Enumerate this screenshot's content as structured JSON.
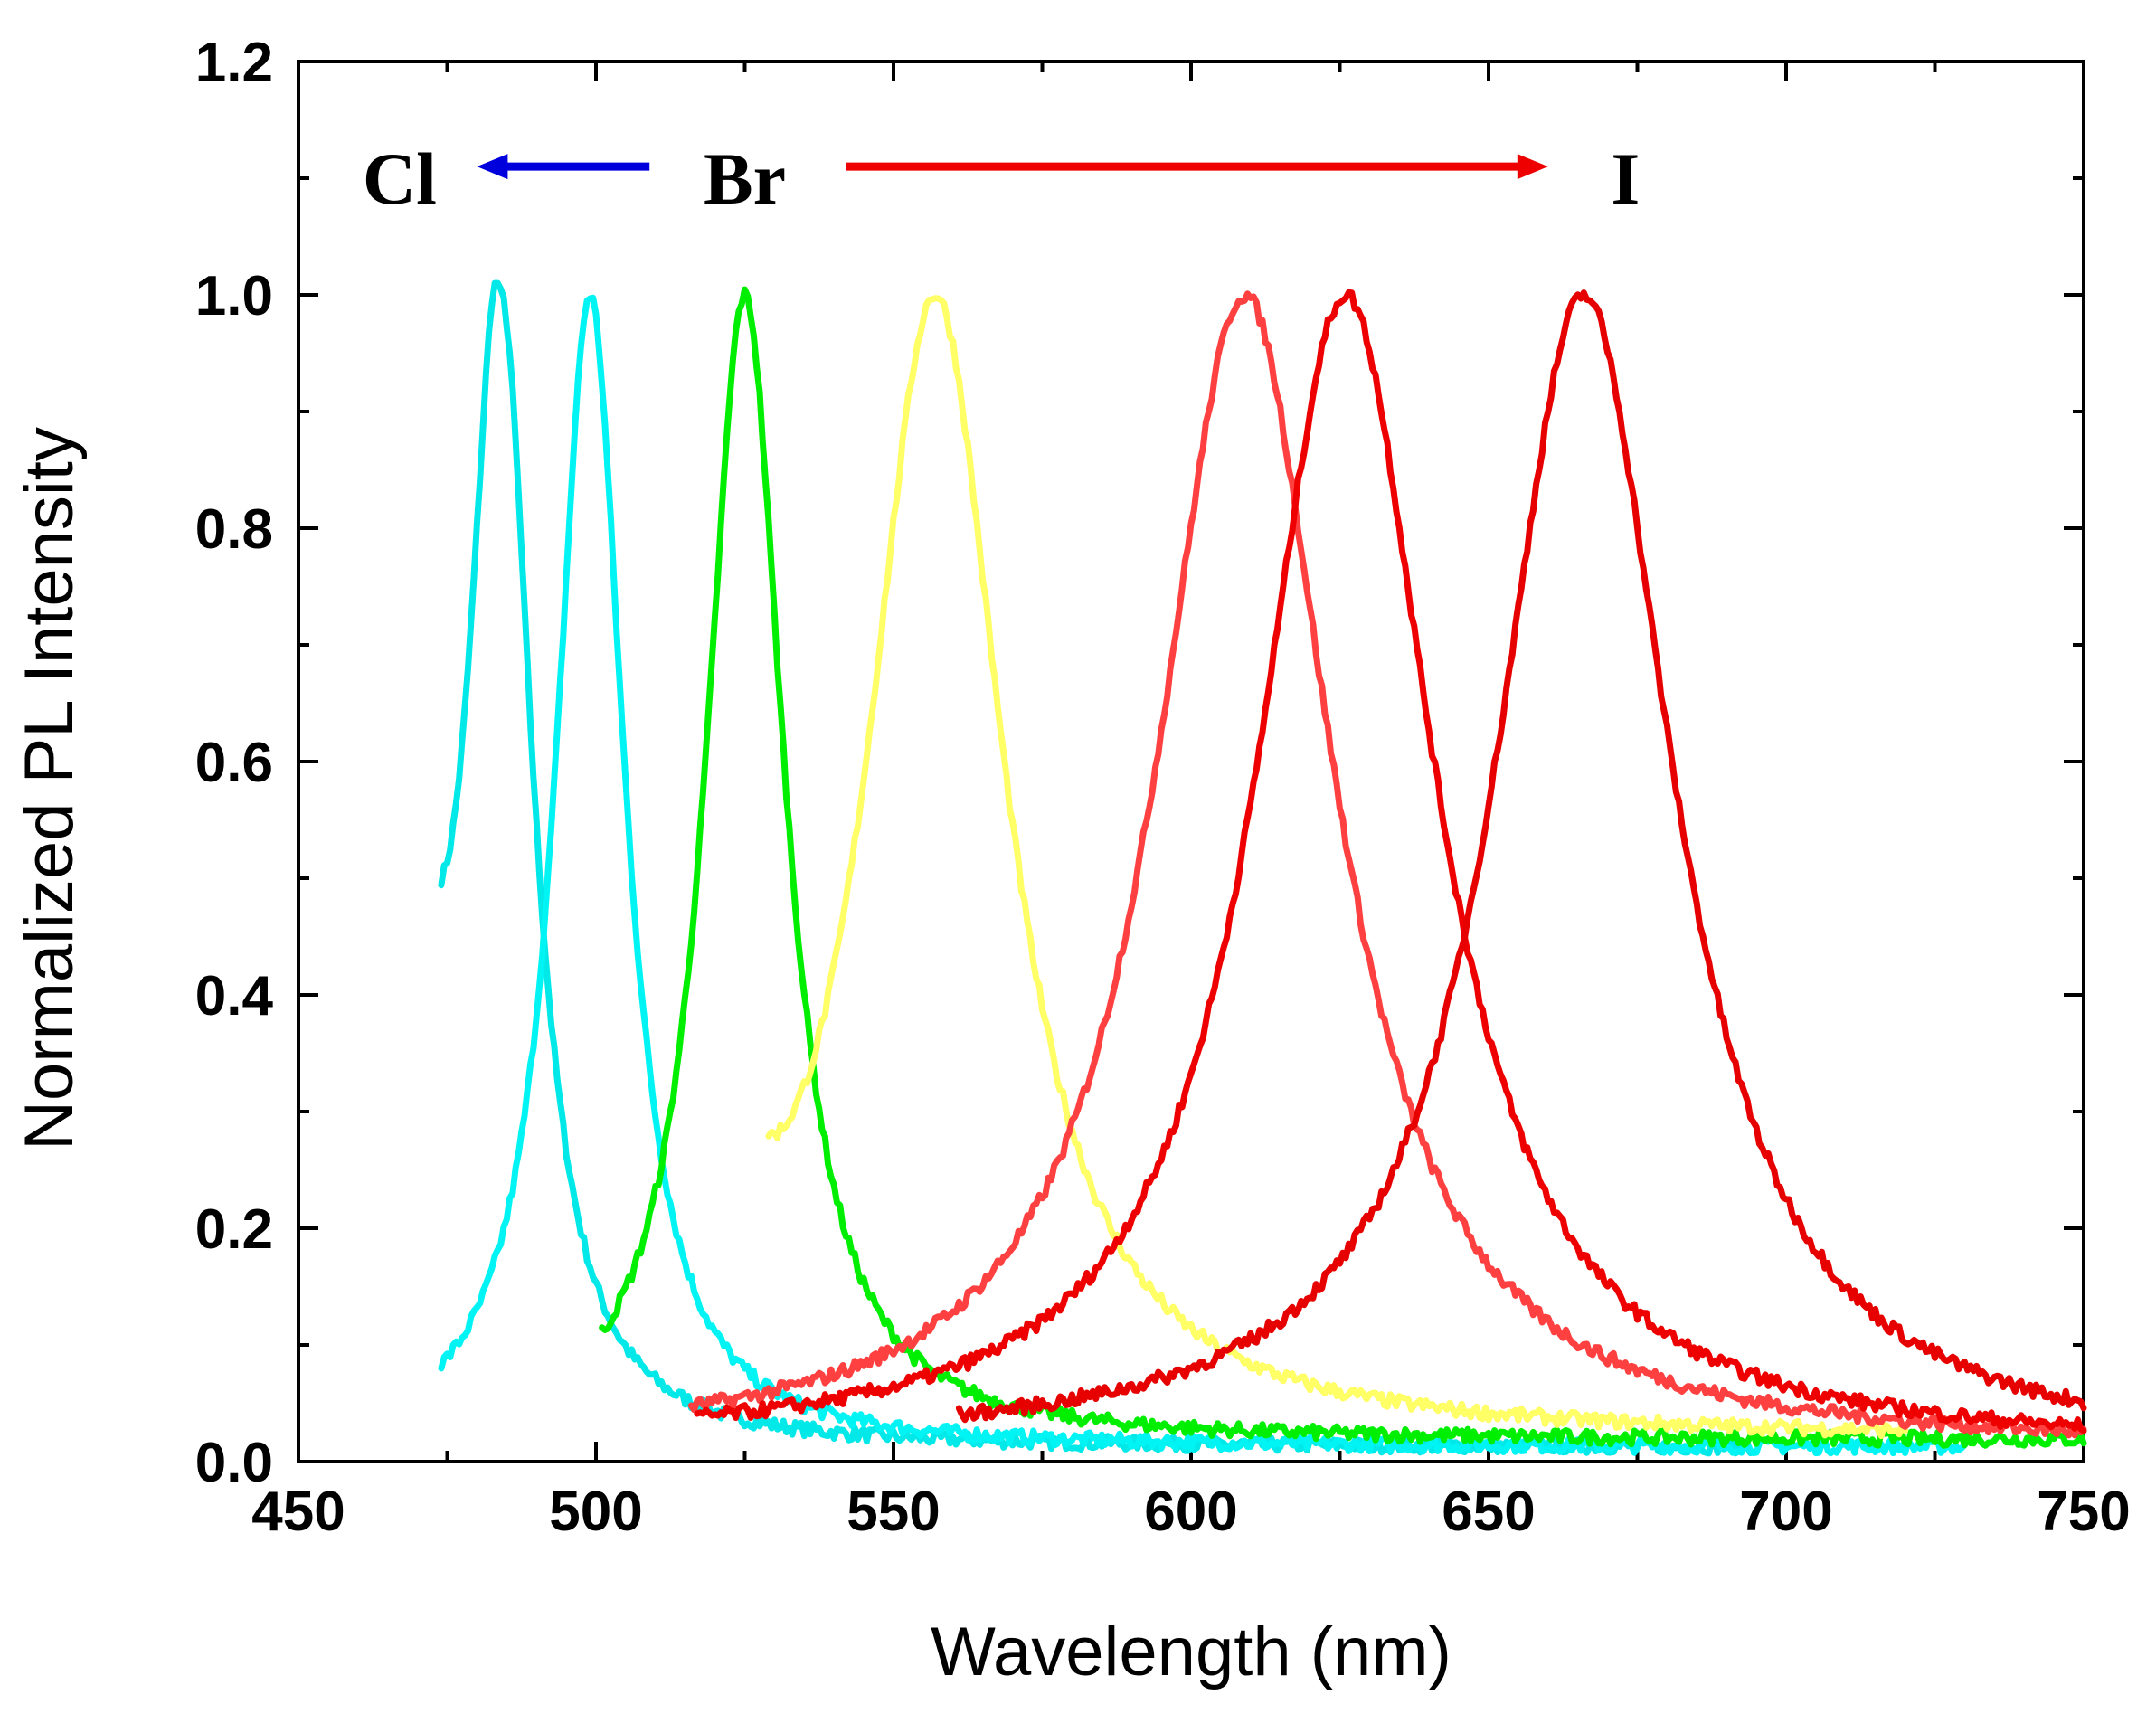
{
  "chart_data": {
    "type": "line",
    "title": "",
    "xlabel": "Wavelength (nm)",
    "ylabel": "Normalized PL Intensity",
    "xlim": [
      450,
      750
    ],
    "ylim": [
      0.0,
      1.2
    ],
    "x_ticks": [
      "450",
      "500",
      "550",
      "600",
      "650",
      "700",
      "750"
    ],
    "y_ticks": [
      "0.0",
      "0.2",
      "0.4",
      "0.6",
      "0.8",
      "1.0",
      "1.2"
    ],
    "grid": false,
    "series": [
      {
        "name": "peak 484 nm",
        "color": "#00E8E8",
        "peak": 484,
        "fwhm": 13,
        "start": 474,
        "end": 694,
        "start_value": 0.5,
        "tail_from": 0.12,
        "tail_value": 0.012
      },
      {
        "name": "peak 499 nm",
        "color": "#00F4F4",
        "peak": 499,
        "fwhm": 14,
        "start": 474,
        "end": 730,
        "start_value": 0.065,
        "tail_from": 0.15,
        "tail_value": 0.012
      },
      {
        "name": "peak 525 nm",
        "color": "#00EE00",
        "peak": 525,
        "fwhm": 16,
        "start": 501,
        "end": 750,
        "start_value": 0.08,
        "tail_from": 0.08,
        "tail_value": 0.018
      },
      {
        "name": "peak 557 nm",
        "color": "#FFFF66",
        "peak": 557,
        "fwhm": 28,
        "start": 529,
        "end": 720,
        "start_value": 0.28,
        "tail_from": 0.1,
        "tail_value": 0.02
      },
      {
        "name": "peak 609 nm",
        "color": "#FF4040",
        "peak": 609,
        "fwhm": 36,
        "start": 516,
        "end": 750,
        "start_value": 0.04,
        "tail_from": 0.1,
        "tail_value": 0.01
      },
      {
        "name": "peak 626 nm",
        "color": "#EE0000",
        "peak": 626,
        "fwhm": 36,
        "start": 517,
        "end": 750,
        "start_value": 0.03,
        "tail_from": 0.1,
        "tail_value": 0.01
      },
      {
        "name": "peak 666 nm",
        "color": "#E60000",
        "peak": 666,
        "fwhm": 36,
        "start": 561,
        "end": 750,
        "start_value": 0.02,
        "tail_from": 0.1,
        "tail_value": 0.008
      }
    ],
    "annotations": {
      "cl": {
        "text": "Cl",
        "x": 467,
        "y": 1.1
      },
      "br": {
        "text": "Br",
        "x": 525,
        "y": 1.1
      },
      "i": {
        "text": "I",
        "x": 673,
        "y": 1.1
      },
      "arrow_left": {
        "color": "#0000DD",
        "x_from": 509,
        "x_to": 480,
        "y": 1.11
      },
      "arrow_right": {
        "color": "#EE0000",
        "x_from": 542,
        "x_to": 660,
        "y": 1.11
      }
    }
  }
}
